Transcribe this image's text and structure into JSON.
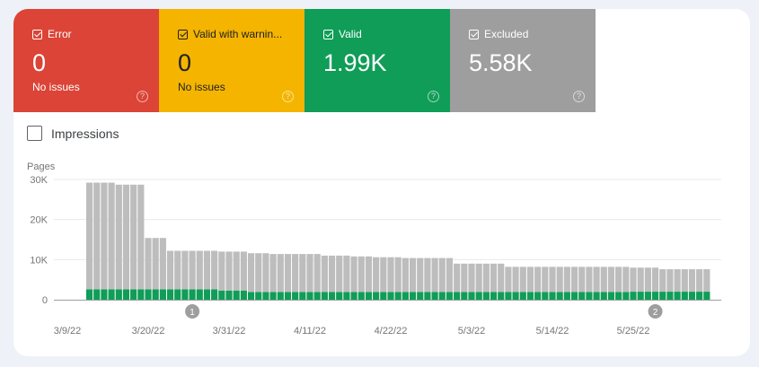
{
  "cards": [
    {
      "label": "Error",
      "value": "0",
      "sub": "No issues",
      "color": "#db4437",
      "text_color": "#ffffff"
    },
    {
      "label": "Valid with warnin...",
      "value": "0",
      "sub": "No issues",
      "color": "#f4b400",
      "text_color": "#202124"
    },
    {
      "label": "Valid",
      "value": "1.99K",
      "sub": "",
      "color": "#0f9d58",
      "text_color": "#ffffff"
    },
    {
      "label": "Excluded",
      "value": "5.58K",
      "sub": "",
      "color": "#9e9e9e",
      "text_color": "#ffffff"
    }
  ],
  "impressions_label": "Impressions",
  "chart_data": {
    "type": "bar",
    "stacked": true,
    "ylabel": "Pages",
    "ylim": [
      0,
      30000
    ],
    "yticks": [
      "0",
      "10K",
      "20K",
      "30K"
    ],
    "ytick_values": [
      0,
      10000,
      20000,
      30000
    ],
    "xtick_labels": [
      "3/9/22",
      "3/20/22",
      "3/31/22",
      "4/11/22",
      "4/22/22",
      "5/3/22",
      "5/14/22",
      "5/25/22"
    ],
    "grid": true,
    "annotations": [
      {
        "label": "1",
        "date": "3/26/22"
      },
      {
        "label": "2",
        "date": "5/28/22"
      }
    ],
    "x": [
      "3/12/22",
      "3/13/22",
      "3/14/22",
      "3/15/22",
      "3/16/22",
      "3/17/22",
      "3/18/22",
      "3/19/22",
      "3/20/22",
      "3/21/22",
      "3/22/22",
      "3/23/22",
      "3/24/22",
      "3/25/22",
      "3/26/22",
      "3/27/22",
      "3/28/22",
      "3/29/22",
      "3/30/22",
      "3/31/22",
      "4/1/22",
      "4/2/22",
      "4/3/22",
      "4/4/22",
      "4/5/22",
      "4/6/22",
      "4/7/22",
      "4/8/22",
      "4/9/22",
      "4/10/22",
      "4/11/22",
      "4/12/22",
      "4/13/22",
      "4/14/22",
      "4/15/22",
      "4/16/22",
      "4/17/22",
      "4/18/22",
      "4/19/22",
      "4/20/22",
      "4/21/22",
      "4/22/22",
      "4/23/22",
      "4/24/22",
      "4/25/22",
      "4/26/22",
      "4/27/22",
      "4/28/22",
      "4/29/22",
      "4/30/22",
      "5/1/22",
      "5/2/22",
      "5/3/22",
      "5/4/22",
      "5/5/22",
      "5/6/22",
      "5/7/22",
      "5/8/22",
      "5/9/22",
      "5/10/22",
      "5/11/22",
      "5/12/22",
      "5/13/22",
      "5/14/22",
      "5/15/22",
      "5/16/22",
      "5/17/22",
      "5/18/22",
      "5/19/22",
      "5/20/22",
      "5/21/22",
      "5/22/22",
      "5/23/22",
      "5/24/22",
      "5/25/22",
      "5/26/22",
      "5/27/22",
      "5/28/22",
      "5/29/22",
      "5/30/22",
      "5/31/22",
      "6/1/22",
      "6/2/22",
      "6/3/22",
      "6/4/22"
    ],
    "series": [
      {
        "name": "Valid",
        "color": "#0f9d58",
        "values": [
          2600,
          2600,
          2600,
          2600,
          2600,
          2600,
          2600,
          2600,
          2600,
          2600,
          2600,
          2600,
          2600,
          2600,
          2600,
          2600,
          2600,
          2600,
          2300,
          2300,
          2300,
          2300,
          1900,
          1900,
          1900,
          1900,
          1900,
          1900,
          1900,
          1900,
          1900,
          1900,
          1900,
          1900,
          1900,
          1900,
          1900,
          1900,
          1900,
          1900,
          1900,
          1900,
          1900,
          1900,
          1900,
          1900,
          1900,
          1900,
          1900,
          1900,
          1900,
          1900,
          1900,
          1900,
          1900,
          1900,
          1900,
          1900,
          1900,
          1900,
          1900,
          1900,
          1900,
          1900,
          1900,
          1900,
          1900,
          1900,
          1900,
          1900,
          1900,
          1900,
          1900,
          1900,
          2000,
          2000,
          2000,
          2000,
          2000,
          2000,
          2000,
          2000,
          2000,
          2000,
          2000
        ]
      },
      {
        "name": "Excluded",
        "color": "#bdbdbd",
        "values": [
          26600,
          26600,
          26600,
          26600,
          26100,
          26100,
          26100,
          26100,
          12800,
          12800,
          12800,
          9600,
          9600,
          9600,
          9600,
          9600,
          9600,
          9600,
          9700,
          9700,
          9700,
          9700,
          9700,
          9700,
          9700,
          9500,
          9500,
          9500,
          9500,
          9500,
          9500,
          9500,
          9100,
          9100,
          9100,
          9100,
          8900,
          8900,
          8900,
          8700,
          8700,
          8700,
          8700,
          8500,
          8500,
          8500,
          8500,
          8500,
          8500,
          8500,
          7100,
          7100,
          7100,
          7100,
          7100,
          7100,
          7100,
          6300,
          6300,
          6300,
          6300,
          6300,
          6300,
          6300,
          6300,
          6300,
          6300,
          6300,
          6300,
          6300,
          6300,
          6300,
          6300,
          6300,
          6000,
          6000,
          6000,
          6000,
          5600,
          5600,
          5600,
          5600,
          5600,
          5600,
          5600
        ]
      }
    ]
  }
}
